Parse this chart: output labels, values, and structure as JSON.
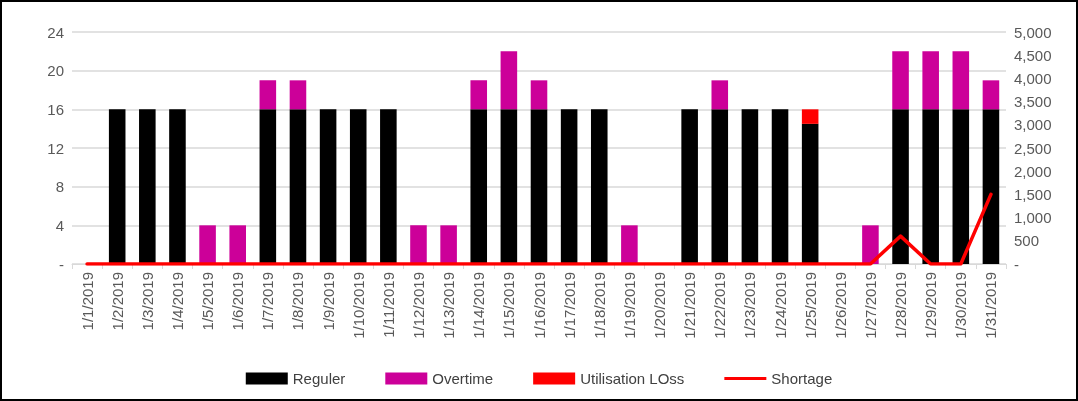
{
  "chart_data": {
    "type": "bar",
    "stacked": true,
    "categories": [
      "1/1/2019",
      "1/2/2019",
      "1/3/2019",
      "1/4/2019",
      "1/5/2019",
      "1/6/2019",
      "1/7/2019",
      "1/8/2019",
      "1/9/2019",
      "1/10/2019",
      "1/11/2019",
      "1/12/2019",
      "1/13/2019",
      "1/14/2019",
      "1/15/2019",
      "1/16/2019",
      "1/17/2019",
      "1/18/2019",
      "1/19/2019",
      "1/20/2019",
      "1/21/2019",
      "1/22/2019",
      "1/23/2019",
      "1/24/2019",
      "1/25/2019",
      "1/26/2019",
      "1/27/2019",
      "1/28/2019",
      "1/29/2019",
      "1/30/2019",
      "1/31/2019"
    ],
    "series": [
      {
        "name": "Reguler",
        "color": "#000000",
        "values": [
          0,
          16,
          16,
          16,
          0,
          0,
          16,
          16,
          16,
          16,
          16,
          0,
          0,
          16,
          16,
          16,
          16,
          16,
          0,
          0,
          16,
          16,
          16,
          16,
          14.5,
          0,
          0,
          16,
          16,
          16,
          16
        ]
      },
      {
        "name": "Overtime",
        "color": "#cc0099",
        "values": [
          0,
          0,
          0,
          0,
          4,
          4,
          3,
          3,
          0,
          0,
          0,
          4,
          4,
          3,
          6,
          3,
          0,
          0,
          4,
          0,
          0,
          3,
          0,
          0,
          0,
          0,
          4,
          6,
          6,
          6,
          3
        ]
      },
      {
        "name": "Utilisation LOss",
        "color": "#ff0000",
        "values": [
          0,
          0,
          0,
          0,
          0,
          0,
          0,
          0,
          0,
          0,
          0,
          0,
          0,
          0,
          0,
          0,
          0,
          0,
          0,
          0,
          0,
          0,
          0,
          0,
          1.5,
          0,
          0,
          0,
          0,
          0,
          0
        ]
      },
      {
        "name": "Shortage",
        "type": "line",
        "axis": "y2",
        "color": "#ff0000",
        "values": [
          0,
          0,
          0,
          0,
          0,
          0,
          0,
          0,
          0,
          0,
          0,
          0,
          0,
          0,
          0,
          0,
          0,
          0,
          0,
          0,
          0,
          0,
          0,
          0,
          0,
          0,
          0,
          600,
          0,
          0,
          1500
        ]
      }
    ],
    "ylim": [
      0,
      24
    ],
    "yticks": [
      {
        "value": 0,
        "label": "-"
      },
      4,
      8,
      12,
      16,
      20,
      24
    ],
    "y2lim": [
      0,
      5000
    ],
    "y2ticks": [
      {
        "value": 0,
        "label": "-"
      },
      {
        "value": 500,
        "label": "500"
      },
      {
        "value": 1000,
        "label": "1,000"
      },
      {
        "value": 1500,
        "label": "1,500"
      },
      {
        "value": 2000,
        "label": "2,000"
      },
      {
        "value": 2500,
        "label": "2,500"
      },
      {
        "value": 3000,
        "label": "3,000"
      },
      {
        "value": 3500,
        "label": "3,500"
      },
      {
        "value": 4000,
        "label": "4,000"
      },
      {
        "value": 4500,
        "label": "4,500"
      },
      {
        "value": 5000,
        "label": "5,000"
      }
    ],
    "grid": "y",
    "legend": "bottom",
    "marker": "none",
    "line_style": "solid"
  }
}
